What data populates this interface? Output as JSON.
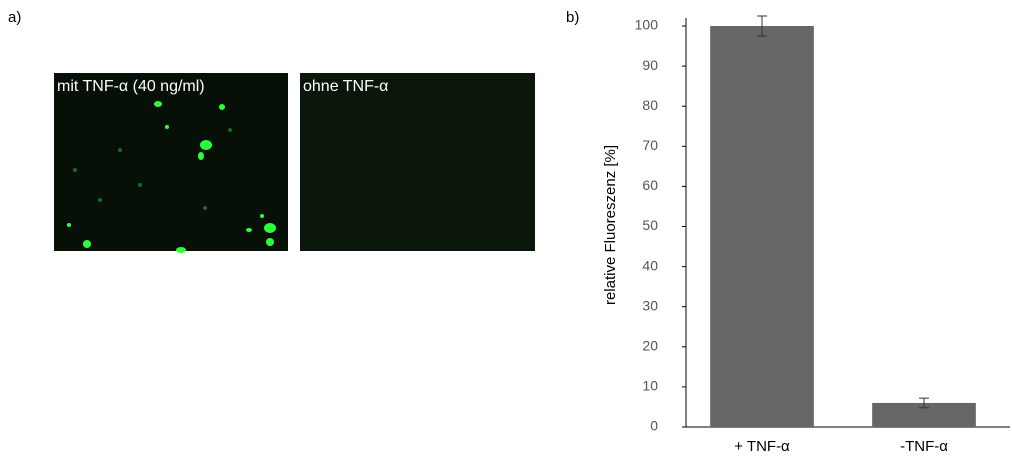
{
  "panel_labels": [
    "a)",
    "b)"
  ],
  "images": [
    {
      "label": "mit TNF-α (40 ng/ml)"
    },
    {
      "label": "ohne TNF-α"
    }
  ],
  "chart_data": {
    "type": "bar",
    "y_label": "relative Fluoreszenz [%]",
    "categories": [
      "+ TNF-α",
      "-TNF-α"
    ],
    "values": [
      100,
      6
    ],
    "errors": [
      2.5,
      1.2
    ],
    "color": "#666666",
    "ylim": [
      0,
      102
    ],
    "yticks": [
      0,
      10,
      20,
      30,
      40,
      50,
      60,
      70,
      80,
      90,
      100
    ],
    "grid": false
  }
}
